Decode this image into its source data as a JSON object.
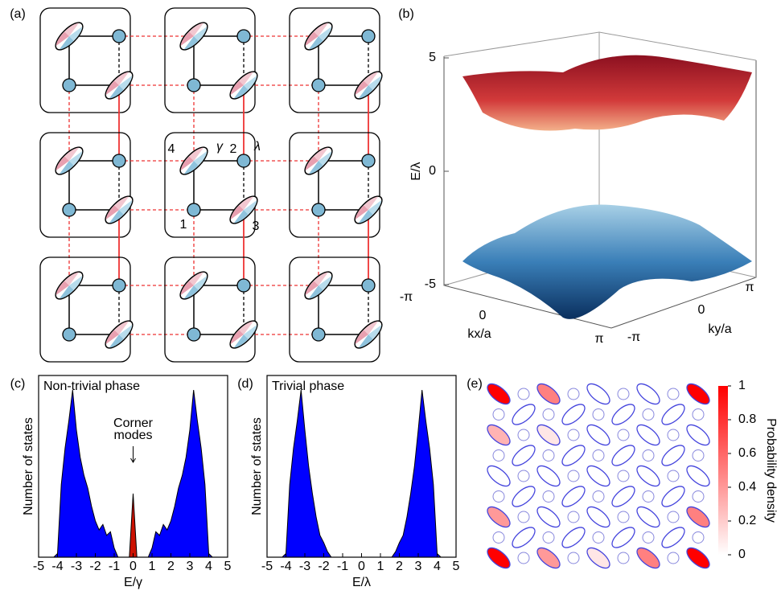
{
  "panel_labels": [
    "(a)",
    "(b)",
    "(c)",
    "(d)",
    "(e)"
  ],
  "lattice": {
    "labels": [
      "4",
      "γ",
      "2",
      "λ",
      "1",
      "3"
    ]
  },
  "band_structure": {
    "type": "surface",
    "zlabel": "E/λ",
    "zlim": [
      -5,
      5
    ],
    "zticks": [
      5,
      0,
      -5
    ],
    "xlabel": "kx/a",
    "xticks": [
      "-π",
      "0",
      "π"
    ],
    "ylabel": "ky/a",
    "yticks": [
      "-π",
      "0",
      "π"
    ]
  },
  "chart_data": [
    {
      "type": "area",
      "title": "Non-trivial phase",
      "xlabel": "E/γ",
      "ylabel": "Number of states",
      "annotation": "Corner modes",
      "xlim": [
        -5,
        5
      ],
      "xticks": [
        -5,
        -4,
        -3,
        -2,
        -1,
        0,
        1,
        2,
        3,
        4,
        5
      ],
      "ylim": [
        0,
        100
      ],
      "x": [
        -4.2,
        -4.0,
        -3.8,
        -3.6,
        -3.4,
        -3.2,
        -3.0,
        -2.8,
        -2.6,
        -2.4,
        -2.2,
        -2.0,
        -1.8,
        -1.6,
        -1.4,
        -1.2,
        -1.0,
        -0.8,
        -0.6,
        -0.4,
        -0.2,
        0,
        0.2,
        0.4,
        0.6,
        0.8,
        1.0,
        1.2,
        1.4,
        1.6,
        1.8,
        2.0,
        2.2,
        2.4,
        2.6,
        2.8,
        3.0,
        3.2,
        3.4,
        3.6,
        3.8,
        4.0,
        4.2
      ],
      "series": [
        {
          "color": "#0000ff",
          "values": [
            0,
            2,
            40,
            60,
            75,
            92,
            70,
            55,
            45,
            38,
            28,
            20,
            15,
            18,
            12,
            14,
            5,
            0,
            0,
            0,
            0,
            0,
            0,
            0,
            0,
            0,
            5,
            14,
            12,
            18,
            15,
            20,
            28,
            38,
            45,
            55,
            70,
            92,
            75,
            60,
            40,
            2,
            0
          ]
        },
        {
          "color": "#cc1100",
          "values": [
            0,
            0,
            0,
            0,
            0,
            0,
            0,
            0,
            0,
            0,
            0,
            0,
            0,
            0,
            0,
            0,
            0,
            0,
            0,
            0,
            0,
            35,
            0,
            0,
            0,
            0,
            0,
            0,
            0,
            0,
            0,
            0,
            0,
            0,
            0,
            0,
            0,
            0,
            0,
            0,
            0,
            0,
            0
          ]
        }
      ]
    },
    {
      "type": "area",
      "title": "Trivial phase",
      "xlabel": "E/λ",
      "ylabel": "Number of states",
      "xlim": [
        -5,
        5
      ],
      "xticks": [
        -5,
        -4,
        -3,
        -2,
        -1,
        0,
        1,
        2,
        3,
        4,
        5
      ],
      "ylim": [
        0,
        100
      ],
      "x": [
        -4.2,
        -4.0,
        -3.8,
        -3.6,
        -3.4,
        -3.2,
        -3.0,
        -2.8,
        -2.6,
        -2.4,
        -2.2,
        -2.0,
        -1.8,
        -1.6,
        -1.4,
        -1.2,
        -1.0,
        -0.8,
        -0.6,
        -0.4,
        -0.2,
        0,
        0.2,
        0.4,
        0.6,
        0.8,
        1.0,
        1.2,
        1.4,
        1.6,
        1.8,
        2.0,
        2.2,
        2.4,
        2.6,
        2.8,
        3.0,
        3.2,
        3.4,
        3.6,
        3.8,
        4.0,
        4.2
      ],
      "series": [
        {
          "color": "#0000ff",
          "values": [
            0,
            2,
            40,
            60,
            75,
            92,
            70,
            50,
            35,
            22,
            12,
            8,
            3,
            0,
            0,
            0,
            0,
            0,
            0,
            0,
            0,
            0,
            0,
            0,
            0,
            0,
            0,
            0,
            0,
            0,
            3,
            8,
            12,
            22,
            35,
            50,
            70,
            92,
            75,
            60,
            40,
            2,
            0
          ]
        }
      ]
    }
  ],
  "probability_map": {
    "type": "heatmap",
    "colorbar_label": "Probability density",
    "clim": [
      0,
      1
    ],
    "cticks": [
      0,
      0.2,
      0.4,
      0.6,
      0.8,
      1
    ],
    "density": [
      [
        1,
        0,
        0.5,
        0,
        0,
        0,
        0,
        0,
        1
      ],
      [
        0,
        0,
        0,
        0,
        0,
        0,
        0,
        0,
        0
      ],
      [
        0.3,
        0,
        0.1,
        0,
        0,
        0,
        0,
        0,
        0
      ],
      [
        0,
        0,
        0,
        0,
        0,
        0,
        0,
        0,
        0
      ],
      [
        0,
        0,
        0,
        0,
        0,
        0,
        0,
        0,
        0
      ],
      [
        0,
        0,
        0,
        0,
        0,
        0,
        0,
        0,
        0
      ],
      [
        0.4,
        0,
        0,
        0,
        0,
        0,
        0,
        0,
        0.5
      ],
      [
        0,
        0,
        0,
        0,
        0,
        0,
        0,
        0,
        0
      ],
      [
        1,
        0,
        0.4,
        0,
        0.1,
        0,
        0.5,
        0,
        1
      ]
    ]
  }
}
